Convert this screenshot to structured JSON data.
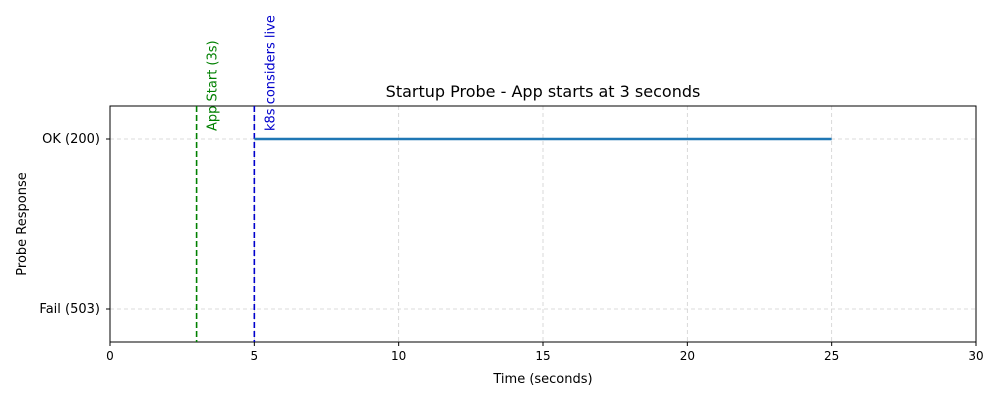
{
  "chart_data": {
    "type": "line",
    "title": "Startup Probe - App starts at 3 seconds",
    "xlabel": "Time (seconds)",
    "ylabel": "Probe Response",
    "xlim": [
      0,
      30
    ],
    "x_ticks": [
      0,
      5,
      10,
      15,
      20,
      25,
      30
    ],
    "y_categories": [
      "Fail (503)",
      "OK (200)"
    ],
    "grid": true,
    "series": [
      {
        "color": "#1f77b4",
        "x": [
          5,
          25
        ],
        "y": [
          "OK (200)",
          "OK (200)"
        ]
      }
    ],
    "annotations": [
      {
        "label": "App Start (3s)",
        "x": 3,
        "color": "#008000"
      },
      {
        "label": "k8s considers live",
        "x": 5,
        "color": "#0000cc"
      }
    ]
  }
}
